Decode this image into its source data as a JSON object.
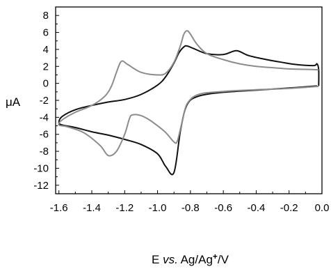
{
  "chart_data": {
    "type": "line",
    "title": "",
    "xlabel": {
      "prefix": "E ",
      "italic": "vs.",
      "middle": " Ag/Ag",
      "sup": "+",
      "suffix": "/V"
    },
    "ylabel": "μA",
    "xlim": [
      -1.62,
      0.0
    ],
    "ylim": [
      -13,
      9
    ],
    "xticks": [
      -1.6,
      -1.4,
      -1.2,
      -1.0,
      -0.8,
      -0.6,
      -0.4,
      -0.2,
      0.0
    ],
    "xtick_labels": [
      "-1.6",
      "-1.4",
      "-1.2",
      "-1.0",
      "-0.8",
      "-0.6",
      "-0.4",
      "-0.2",
      "0.0"
    ],
    "yticks": [
      8,
      6,
      4,
      2,
      0,
      -2,
      -4,
      -6,
      -8,
      -10,
      -12
    ],
    "ytick_labels": [
      "8",
      "6",
      "4",
      "2",
      "0",
      "-2",
      "-4",
      "-6",
      "-8",
      "-10",
      "-12"
    ],
    "grid": false,
    "legend": "none",
    "series": [
      {
        "color": "#111111",
        "x": [
          -0.03,
          -0.2,
          -0.4,
          -0.6,
          -0.75,
          -0.82,
          -0.86,
          -0.9,
          -0.95,
          -1.0,
          -1.1,
          -1.2,
          -1.3,
          -1.4,
          -1.5,
          -1.58,
          -1.6,
          -1.58,
          -1.5,
          -1.4,
          -1.3,
          -1.2,
          -1.1,
          -1.0,
          -0.95,
          -0.9,
          -0.87,
          -0.84,
          -0.82,
          -0.78,
          -0.7,
          -0.6,
          -0.52,
          -0.45,
          -0.35,
          -0.25,
          -0.15,
          -0.05,
          -0.03,
          -0.02,
          -0.02
        ],
        "y": [
          -0.3,
          -0.55,
          -0.8,
          -1.05,
          -1.5,
          -2.5,
          -5.5,
          -10.5,
          -9.8,
          -8.3,
          -7.2,
          -6.6,
          -6.1,
          -5.7,
          -5.2,
          -4.9,
          -4.6,
          -3.9,
          -3.1,
          -2.6,
          -2.2,
          -1.9,
          -1.3,
          -0.2,
          0.8,
          2.4,
          3.6,
          4.3,
          4.4,
          4.1,
          3.5,
          3.4,
          3.85,
          3.3,
          2.85,
          2.5,
          2.2,
          2.1,
          2.3,
          1.6,
          -0.3
        ]
      },
      {
        "color": "#8c8c8c",
        "x": [
          -0.02,
          -0.2,
          -0.4,
          -0.6,
          -0.75,
          -0.82,
          -0.85,
          -0.88,
          -0.9,
          -0.95,
          -1.0,
          -1.05,
          -1.1,
          -1.15,
          -1.17,
          -1.2,
          -1.25,
          -1.3,
          -1.35,
          -1.45,
          -1.55,
          -1.6,
          -1.58,
          -1.5,
          -1.4,
          -1.32,
          -1.28,
          -1.25,
          -1.22,
          -1.18,
          -1.1,
          -1.0,
          -0.95,
          -0.9,
          -0.86,
          -0.84,
          -0.82,
          -0.8,
          -0.76,
          -0.7,
          -0.6,
          -0.5,
          -0.4,
          -0.3,
          -0.2,
          -0.1,
          -0.02
        ],
        "y": [
          -0.35,
          -0.6,
          -0.75,
          -0.95,
          -1.3,
          -2.4,
          -4.5,
          -6.8,
          -6.9,
          -5.8,
          -5.0,
          -4.3,
          -3.8,
          -3.7,
          -4.1,
          -6.0,
          -8.0,
          -8.5,
          -7.3,
          -5.8,
          -5.1,
          -4.9,
          -4.3,
          -3.4,
          -2.6,
          -1.5,
          -0.3,
          1.3,
          2.6,
          2.2,
          1.3,
          1.0,
          1.2,
          2.5,
          4.5,
          5.8,
          6.2,
          5.8,
          4.6,
          3.5,
          2.8,
          2.3,
          2.0,
          1.85,
          1.7,
          1.65,
          1.6
        ]
      }
    ]
  }
}
